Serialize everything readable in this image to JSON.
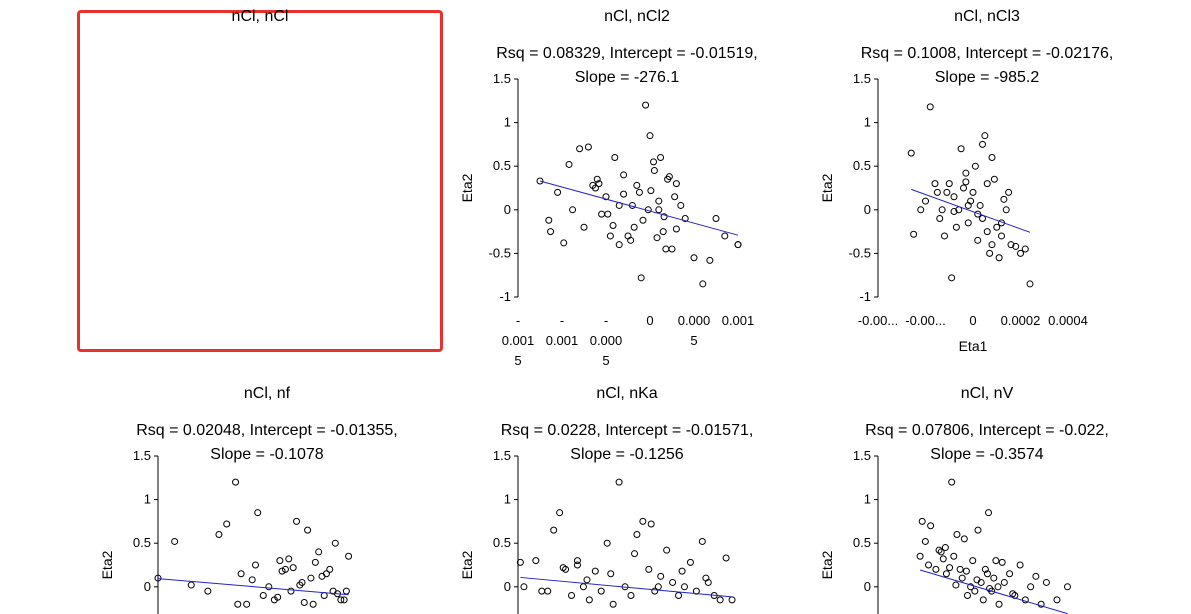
{
  "selected_panel": {
    "title": "nCl, nCl"
  },
  "panels": [
    {
      "id": "ncl-ncl2",
      "title": "nCl, nCl2",
      "stats_line1": "Rsq = 0.08329, Intercept = -0.01519,",
      "stats_line2": "Slope = -276.1",
      "ylabel": "Eta2",
      "xlabel": "",
      "yticks": [
        "1.5",
        "1",
        "0.5",
        "0",
        "-0.5",
        "-1"
      ],
      "xticks": [
        [
          "-",
          "0.001",
          "5"
        ],
        [
          "-",
          "0.001"
        ],
        [
          "-",
          "0.000",
          "5"
        ],
        [
          "0"
        ],
        [
          "0.000",
          "5"
        ],
        [
          "0.001"
        ]
      ]
    },
    {
      "id": "ncl-ncl3",
      "title": "nCl, nCl3",
      "stats_line1": "Rsq = 0.1008, Intercept = -0.02176,",
      "stats_line2": "Slope = -985.2",
      "ylabel": "Eta2",
      "xlabel": "Eta1",
      "yticks": [
        "1.5",
        "1",
        "0.5",
        "0",
        "-0.5",
        "-1"
      ],
      "xticks": [
        [
          "-0.00..."
        ],
        [
          "-0.00..."
        ],
        [
          "0"
        ],
        [
          "0.0002"
        ],
        [
          "0.0004"
        ]
      ]
    },
    {
      "id": "ncl-nf",
      "title": "nCl, nf",
      "stats_line1": "Rsq = 0.02048, Intercept = -0.01355,",
      "stats_line2": "Slope = -0.1078",
      "ylabel": "Eta2",
      "xlabel": "",
      "yticks": [
        "1.5",
        "1",
        "0.5",
        "0"
      ],
      "xticks": []
    },
    {
      "id": "ncl-nka",
      "title": "nCl, nKa",
      "stats_line1": "Rsq = 0.0228, Intercept = -0.01571,",
      "stats_line2": "Slope = -0.1256",
      "ylabel": "Eta2",
      "xlabel": "",
      "yticks": [
        "1.5",
        "1",
        "0.5",
        "0"
      ],
      "xticks": []
    },
    {
      "id": "ncl-nv",
      "title": "nCl, nV",
      "stats_line1": "Rsq = 0.07806, Intercept = -0.022,",
      "stats_line2": "Slope = -0.3574",
      "ylabel": "Eta2",
      "xlabel": "",
      "yticks": [
        "1.5",
        "1",
        "0.5",
        "0"
      ],
      "xticks": []
    }
  ],
  "chart_data": [
    {
      "type": "scatter",
      "title": "nCl, nCl2",
      "ylabel": "Eta2",
      "xlabel": "",
      "ylim": [
        -1,
        1.5
      ],
      "xlim": [
        -0.0015,
        0.001
      ],
      "regression": {
        "intercept": -0.01519,
        "slope": -276.1,
        "rsq": 0.08329
      },
      "line_color": "#2222cc",
      "x": [
        -0.00125,
        -0.00115,
        -0.00113,
        -0.00105,
        -0.00098,
        -0.00092,
        -0.00088,
        -0.0008,
        -0.00075,
        -0.0007,
        -0.00065,
        -0.0006,
        -0.00055,
        -0.0005,
        -0.00045,
        -0.0004,
        -0.00035,
        -0.0003,
        -0.00025,
        -0.0002,
        -0.00015,
        -0.0001,
        -5e-05,
        0,
        5e-05,
        0.0001,
        0.00015,
        0.0002,
        0.00025,
        0.0003,
        0.00035,
        0.0004,
        0.0005,
        0.0006,
        0.00068,
        0.00075,
        0.00085,
        0.001,
        -0.00058,
        -0.00042,
        -0.0003,
        -0.00022,
        -0.00012,
        -2e-05,
        8e-05,
        0.00018,
        0.00028,
        0.00012,
        -0.00035,
        -0.00048,
        0.0003,
        0.00022,
        -0.00018,
        4e-05,
        0.0001,
        -8e-05,
        0.00016,
        1e-05,
        0.001,
        -0.00062
      ],
      "y": [
        0.33,
        -0.12,
        -0.25,
        0.2,
        -0.38,
        0.52,
        0.0,
        0.7,
        -0.2,
        0.72,
        0.28,
        0.35,
        -0.05,
        0.15,
        -0.3,
        0.6,
        -0.4,
        0.18,
        -0.3,
        0.05,
        0.28,
        -0.78,
        1.2,
        0.85,
        0.45,
        0.1,
        -0.25,
        0.35,
        -0.45,
        -0.22,
        0.05,
        -0.1,
        -0.55,
        -0.85,
        -0.58,
        -0.1,
        -0.3,
        -0.4,
        0.3,
        -0.18,
        0.4,
        -0.35,
        0.2,
        0.0,
        -0.32,
        -0.45,
        0.15,
        0.6,
        0.05,
        -0.05,
        0.3,
        0.38,
        -0.2,
        0.55,
        0.0,
        -0.12,
        -0.08,
        0.22,
        -0.4,
        0.25
      ]
    },
    {
      "type": "scatter",
      "title": "nCl, nCl3",
      "ylabel": "Eta2",
      "xlabel": "Eta1",
      "ylim": [
        -1,
        1.5
      ],
      "xlim": [
        -0.0004,
        0.0004
      ],
      "regression": {
        "intercept": -0.02176,
        "slope": -985.2,
        "rsq": 0.1008
      },
      "line_color": "#2222cc",
      "x": [
        -0.00026,
        -0.00025,
        -0.00022,
        -0.0002,
        -0.00018,
        -0.00016,
        -0.00015,
        -0.00014,
        -0.00012,
        -0.0001,
        -9e-05,
        -8e-05,
        -7e-05,
        -6e-05,
        -5e-05,
        -4e-05,
        -3e-05,
        -2e-05,
        -1e-05,
        0,
        1e-05,
        2e-05,
        3e-05,
        4e-05,
        5e-05,
        6e-05,
        7e-05,
        8e-05,
        9e-05,
        0.0001,
        0.00011,
        0.00012,
        0.00013,
        0.00014,
        0.00016,
        0.00018,
        0.0002,
        0.00022,
        0.00024,
        -0.00013,
        -0.00011,
        -3e-05,
        2e-05,
        6e-05,
        8e-05,
        0.00012,
        -8e-05,
        0.00015,
        -2e-05,
        4e-05
      ],
      "y": [
        0.65,
        -0.28,
        0.0,
        0.1,
        1.18,
        0.3,
        0.2,
        -0.1,
        -0.3,
        0.3,
        -0.78,
        0.15,
        -0.2,
        0.0,
        0.7,
        0.25,
        0.42,
        -0.15,
        0.1,
        0.2,
        0.5,
        -0.35,
        0.05,
        -0.1,
        0.85,
        0.3,
        -0.5,
        -0.4,
        0.35,
        -0.2,
        -0.55,
        -0.3,
        0.12,
        0.0,
        -0.4,
        -0.42,
        -0.5,
        -0.45,
        -0.85,
        0.0,
        0.2,
        0.32,
        -0.05,
        -0.25,
        0.6,
        -0.15,
        -0.02,
        0.2,
        0.05,
        0.75
      ]
    },
    {
      "type": "scatter",
      "title": "nCl, nf",
      "ylabel": "Eta2",
      "xlabel": "",
      "ylim": [
        -0.3,
        1.5
      ],
      "xlim": [
        -1,
        0.85
      ],
      "regression": {
        "intercept": -0.01355,
        "slope": -0.1078,
        "rsq": 0.02048
      },
      "line_color": "#2222cc",
      "x": [
        -1.0,
        -0.85,
        -0.7,
        -0.55,
        -0.45,
        -0.38,
        -0.3,
        -0.25,
        -0.2,
        -0.1,
        -0.05,
        0.0,
        0.05,
        0.1,
        0.15,
        0.2,
        0.25,
        0.3,
        0.35,
        0.4,
        0.45,
        0.5,
        0.55,
        0.6,
        0.65,
        0.7,
        -0.15,
        0.08,
        0.22,
        0.32,
        0.42,
        0.52,
        0.62,
        0.72,
        -0.28,
        0.12,
        0.28,
        0.48,
        0.58,
        0.68,
        -0.12,
        0.18,
        0.38
      ],
      "y": [
        0.1,
        0.52,
        0.02,
        -0.05,
        0.6,
        0.72,
        1.2,
        0.15,
        -0.2,
        0.85,
        -0.1,
        0.0,
        -0.15,
        0.3,
        0.2,
        -0.05,
        0.75,
        0.05,
        0.65,
        -0.2,
        0.4,
        -0.1,
        0.2,
        0.5,
        -0.15,
        -0.05,
        0.08,
        -0.12,
        0.22,
        -0.18,
        0.28,
        0.15,
        -0.08,
        0.35,
        -0.2,
        0.18,
        0.02,
        0.12,
        -0.05,
        -0.15,
        0.25,
        0.32,
        0.1
      ]
    },
    {
      "type": "scatter",
      "title": "nCl, nKa",
      "ylabel": "Eta2",
      "xlabel": "",
      "ylim": [
        -0.3,
        1.5
      ],
      "xlim": [
        -1,
        0.85
      ],
      "regression": {
        "intercept": -0.01571,
        "slope": -0.1256,
        "rsq": 0.0228
      },
      "line_color": "#2222cc",
      "x": [
        -0.98,
        -0.95,
        -0.85,
        -0.75,
        -0.7,
        -0.65,
        -0.6,
        -0.55,
        -0.5,
        -0.45,
        -0.4,
        -0.35,
        -0.3,
        -0.25,
        -0.2,
        -0.15,
        -0.1,
        -0.05,
        0.0,
        0.05,
        0.1,
        0.15,
        0.2,
        0.25,
        0.3,
        0.35,
        0.4,
        0.45,
        0.5,
        0.55,
        0.6,
        0.65,
        0.7,
        0.75,
        0.8,
        -0.62,
        -0.42,
        -0.22,
        -0.02,
        0.18,
        0.38,
        0.58,
        -0.8,
        -0.5,
        0.12
      ],
      "y": [
        0.28,
        0.0,
        0.3,
        -0.05,
        0.65,
        0.85,
        0.2,
        -0.1,
        0.3,
        0.0,
        -0.15,
        0.18,
        -0.05,
        0.5,
        -0.2,
        1.2,
        0.0,
        -0.1,
        0.6,
        0.75,
        0.2,
        -0.05,
        0.12,
        0.42,
        0.05,
        -0.1,
        0.0,
        0.28,
        -0.05,
        0.52,
        0.05,
        -0.1,
        -0.15,
        0.33,
        -0.15,
        0.22,
        0.08,
        0.15,
        0.38,
        0.0,
        0.18,
        0.1,
        -0.05,
        0.25,
        0.72
      ]
    },
    {
      "type": "scatter",
      "title": "nCl, nV",
      "ylabel": "Eta2",
      "xlabel": "",
      "ylim": [
        -0.3,
        1.5
      ],
      "xlim": [
        -1,
        0.9
      ],
      "regression": {
        "intercept": -0.022,
        "slope": -0.3574,
        "rsq": 0.07806
      },
      "line_color": "#2222cc",
      "x": [
        -0.6,
        -0.58,
        -0.55,
        -0.52,
        -0.5,
        -0.45,
        -0.42,
        -0.38,
        -0.35,
        -0.3,
        -0.28,
        -0.25,
        -0.22,
        -0.2,
        -0.18,
        -0.15,
        -0.12,
        -0.1,
        -0.08,
        -0.05,
        -0.02,
        0.0,
        0.02,
        0.05,
        0.08,
        0.1,
        0.12,
        0.15,
        0.2,
        0.25,
        0.3,
        0.35,
        0.4,
        0.45,
        0.5,
        0.55,
        0.6,
        0.7,
        0.8,
        -0.4,
        -0.32,
        -0.16,
        -0.06,
        0.06,
        0.18,
        0.28,
        -0.26,
        0.04,
        0.14,
        -0.36
      ],
      "y": [
        0.35,
        0.75,
        0.52,
        0.25,
        0.7,
        0.2,
        0.42,
        0.32,
        0.15,
        1.2,
        0.35,
        0.6,
        0.2,
        0.1,
        0.55,
        -0.1,
        0.0,
        0.3,
        -0.05,
        0.65,
        0.05,
        -0.15,
        0.2,
        0.85,
        -0.05,
        0.1,
        0.3,
        -0.2,
        0.05,
        0.15,
        -0.1,
        0.25,
        -0.15,
        0.0,
        0.12,
        -0.2,
        0.05,
        -0.15,
        0.0,
        0.4,
        0.22,
        0.18,
        0.08,
        -0.02,
        0.28,
        -0.08,
        0.02,
        0.15,
        0.0,
        0.45
      ]
    }
  ]
}
